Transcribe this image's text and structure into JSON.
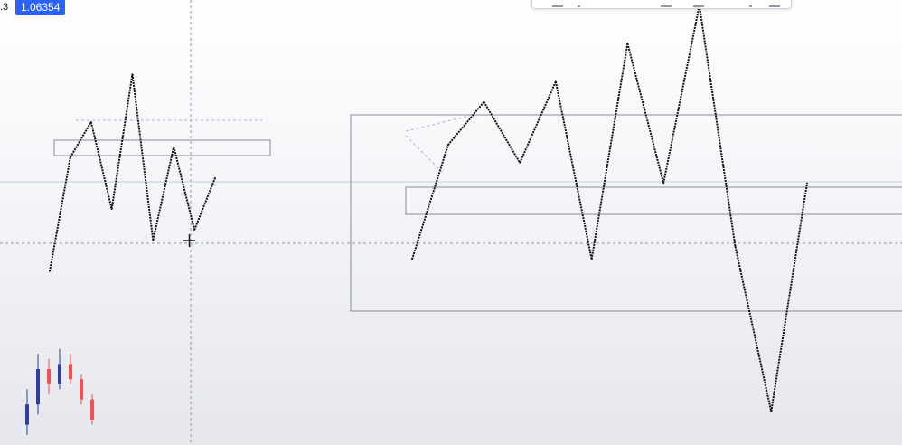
{
  "price_scale": {
    "current_price": "1.06354",
    "left_fragment": ".3",
    "badge_color": "#2962ff"
  },
  "colors": {
    "wave_line": "#111111",
    "box_border": "#8a8d96",
    "crosshair": "#9598a1",
    "bull_candle": "#2a3f9e",
    "bear_candle": "#ef5350",
    "guide_dashed": "#b2b5be"
  },
  "toolbar": {
    "icons": [
      "drawing-tool-icon",
      "settings-icon",
      "lock-icon",
      "more-icon"
    ]
  },
  "chart_data": [
    {
      "type": "line",
      "name": "harmonic-pattern-left",
      "title": "",
      "x": [
        1,
        2,
        3,
        4,
        5,
        6,
        7,
        8,
        9
      ],
      "y": [
        0.0,
        0.55,
        0.72,
        0.3,
        0.95,
        0.15,
        0.6,
        0.2,
        0.45
      ],
      "grid": false
    },
    {
      "type": "line",
      "name": "harmonic-pattern-right",
      "title": "",
      "x": [
        1,
        2,
        3,
        4,
        5,
        6,
        7,
        8,
        9,
        10,
        11,
        12
      ],
      "y": [
        0.0,
        0.45,
        0.62,
        0.38,
        0.7,
        0.0,
        0.85,
        0.3,
        1.0,
        0.05,
        -0.6,
        0.3
      ],
      "grid": false
    },
    {
      "type": "bar",
      "name": "candles",
      "title": "",
      "values": [
        {
          "o": 0.2,
          "c": 0.4,
          "h": 0.55,
          "l": 0.1,
          "dir": "up"
        },
        {
          "o": 0.4,
          "c": 0.75,
          "h": 0.9,
          "l": 0.3,
          "dir": "up"
        },
        {
          "o": 0.75,
          "c": 0.6,
          "h": 0.85,
          "l": 0.5,
          "dir": "down"
        },
        {
          "o": 0.6,
          "c": 0.8,
          "h": 0.95,
          "l": 0.55,
          "dir": "up"
        },
        {
          "o": 0.8,
          "c": 0.65,
          "h": 0.9,
          "l": 0.6,
          "dir": "down"
        },
        {
          "o": 0.65,
          "c": 0.45,
          "h": 0.7,
          "l": 0.4,
          "dir": "down"
        },
        {
          "o": 0.45,
          "c": 0.25,
          "h": 0.5,
          "l": 0.2,
          "dir": "down"
        }
      ]
    }
  ]
}
